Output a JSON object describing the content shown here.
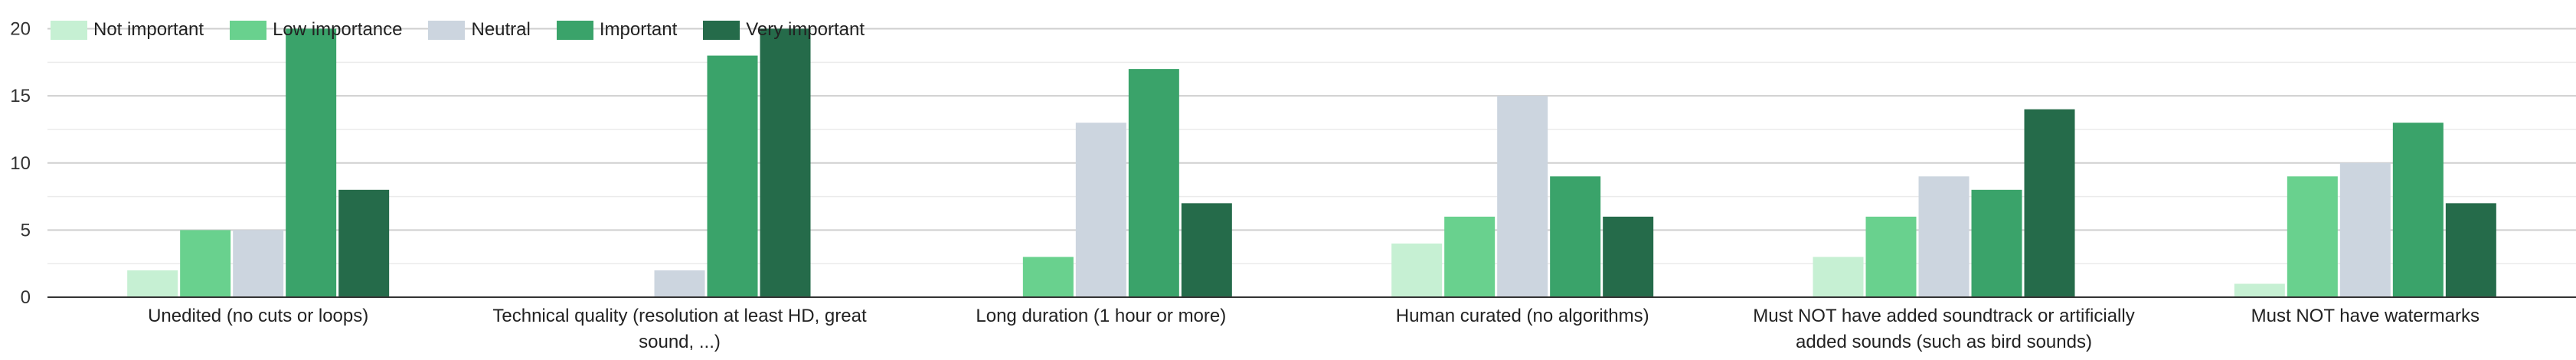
{
  "chart_data": {
    "type": "bar",
    "title": "",
    "xlabel": "",
    "ylabel": "",
    "ylim": [
      0,
      21
    ],
    "yticks": [
      0,
      5,
      10,
      15,
      20
    ],
    "grid": true,
    "legend_position": "top-left",
    "categories": [
      "Unedited (no cuts or loops)",
      "Technical quality (resolution at least HD, great sound, ...)",
      "Long duration (1 hour or more)",
      "Human curated (no algorithms)",
      "Must NOT have added soundtrack or artificially added sounds (such as bird sounds)",
      "Must NOT have watermarks"
    ],
    "category_label_lines": [
      [
        "Unedited (no cuts or loops)"
      ],
      [
        "Technical quality (resolution at least HD, great",
        "sound, ...)"
      ],
      [
        "Long duration (1 hour or more)"
      ],
      [
        "Human curated (no algorithms)"
      ],
      [
        "Must NOT have added soundtrack or artificially",
        "added sounds (such as bird sounds)"
      ],
      [
        "Must NOT have watermarks"
      ]
    ],
    "series": [
      {
        "name": "Not important",
        "color": "#c6f0d3",
        "values": [
          2,
          0,
          0,
          4,
          3,
          1
        ]
      },
      {
        "name": "Low importance",
        "color": "#69d18e",
        "values": [
          5,
          0,
          3,
          6,
          6,
          9
        ]
      },
      {
        "name": "Neutral",
        "color": "#ccd5df",
        "values": [
          5,
          2,
          13,
          15,
          9,
          10
        ]
      },
      {
        "name": "Important",
        "color": "#3aa36a",
        "values": [
          20,
          18,
          17,
          9,
          8,
          13
        ]
      },
      {
        "name": "Very important",
        "color": "#256b4a",
        "values": [
          8,
          20,
          7,
          6,
          14,
          7
        ]
      }
    ]
  }
}
